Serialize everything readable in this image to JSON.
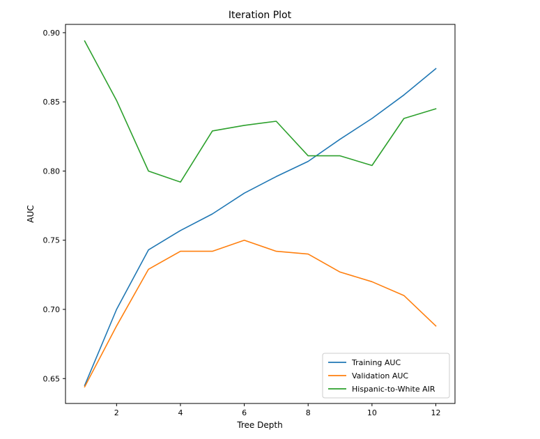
{
  "chart_data": {
    "type": "line",
    "title": "Iteration Plot",
    "xlabel": "Tree Depth",
    "ylabel": "AUC",
    "xlim": [
      0.4,
      12.6
    ],
    "ylim": [
      0.632,
      0.906
    ],
    "xticks": [
      2,
      4,
      6,
      8,
      10,
      12
    ],
    "yticks": [
      0.65,
      0.7,
      0.75,
      0.8,
      0.85,
      0.9
    ],
    "xtick_labels": [
      "2",
      "4",
      "6",
      "8",
      "10",
      "12"
    ],
    "ytick_labels": [
      "0.65",
      "0.70",
      "0.75",
      "0.80",
      "0.85",
      "0.90"
    ],
    "grid": false,
    "legend_position": "lower-right",
    "x": [
      1,
      2,
      3,
      4,
      5,
      6,
      7,
      8,
      9,
      10,
      11,
      12
    ],
    "series": [
      {
        "name": "Training AUC",
        "color": "#1f77b4",
        "values": [
          0.645,
          0.7,
          0.743,
          0.757,
          0.769,
          0.784,
          0.796,
          0.807,
          0.823,
          0.838,
          0.855,
          0.874
        ]
      },
      {
        "name": "Validation AUC",
        "color": "#ff7f0e",
        "values": [
          0.644,
          0.688,
          0.729,
          0.742,
          0.742,
          0.75,
          0.742,
          0.74,
          0.727,
          0.72,
          0.71,
          0.688
        ]
      },
      {
        "name": "Hispanic-to-White AIR",
        "color": "#2ca02c",
        "values": [
          0.894,
          0.851,
          0.8,
          0.792,
          0.829,
          0.833,
          0.836,
          0.811,
          0.811,
          0.804,
          0.838,
          0.845
        ]
      }
    ]
  }
}
